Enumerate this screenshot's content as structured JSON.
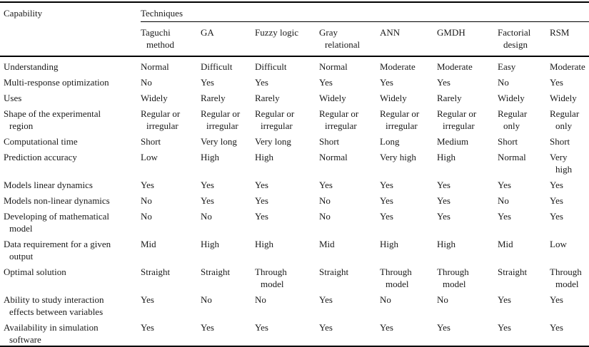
{
  "table": {
    "capability_header": "Capability",
    "techniques_header": "Techniques",
    "technique_columns": [
      "Taguchi\nmethod",
      "GA",
      "Fuzzy logic",
      "Gray\nrelational",
      "ANN",
      "GMDH",
      "Factorial\ndesign",
      "RSM"
    ],
    "rows": [
      {
        "capability": "Understanding",
        "values": [
          "Normal",
          "Difficult",
          "Difficult",
          "Normal",
          "Moderate",
          "Moderate",
          "Easy",
          "Moderate"
        ]
      },
      {
        "capability": "Multi-response optimization",
        "values": [
          "No",
          "Yes",
          "Yes",
          "Yes",
          "Yes",
          "Yes",
          "No",
          "Yes"
        ]
      },
      {
        "capability": "Uses",
        "values": [
          "Widely",
          "Rarely",
          "Rarely",
          "Widely",
          "Widely",
          "Rarely",
          "Widely",
          "Widely"
        ]
      },
      {
        "capability": "Shape of the experimental\nregion",
        "values": [
          "Regular or\nirregular",
          "Regular or\nirregular",
          "Regular or\nirregular",
          "Regular or\nirregular",
          "Regular or\nirregular",
          "Regular or\nirregular",
          "Regular\nonly",
          "Regular\nonly"
        ]
      },
      {
        "capability": "Computational time",
        "values": [
          "Short",
          "Very long",
          "Very long",
          "Short",
          "Long",
          "Medium",
          "Short",
          "Short"
        ]
      },
      {
        "capability": "Prediction accuracy",
        "values": [
          "Low",
          "High",
          "High",
          "Normal",
          "Very high",
          "High",
          "Normal",
          "Very\nhigh"
        ]
      },
      {
        "capability": "Models linear dynamics",
        "values": [
          "Yes",
          "Yes",
          "Yes",
          "Yes",
          "Yes",
          "Yes",
          "Yes",
          "Yes"
        ]
      },
      {
        "capability": "Models non-linear dynamics",
        "values": [
          "No",
          "Yes",
          "Yes",
          "No",
          "Yes",
          "Yes",
          "No",
          "Yes"
        ]
      },
      {
        "capability": "Developing of mathematical\nmodel",
        "values": [
          "No",
          "No",
          "Yes",
          "No",
          "Yes",
          "Yes",
          "Yes",
          "Yes"
        ]
      },
      {
        "capability": "Data requirement for a given\noutput",
        "values": [
          "Mid",
          "High",
          "High",
          "Mid",
          "High",
          "High",
          "Mid",
          "Low"
        ]
      },
      {
        "capability": "Optimal solution",
        "values": [
          "Straight",
          "Straight",
          "Through\nmodel",
          "Straight",
          "Through\nmodel",
          "Through\nmodel",
          "Straight",
          "Through\nmodel"
        ]
      },
      {
        "capability": "Ability to study interaction\neffects between variables",
        "values": [
          "Yes",
          "No",
          "No",
          "Yes",
          "No",
          "No",
          "Yes",
          "Yes"
        ]
      },
      {
        "capability": "Availability in simulation\nsoftware",
        "values": [
          "Yes",
          "Yes",
          "Yes",
          "Yes",
          "Yes",
          "Yes",
          "Yes",
          "Yes"
        ]
      }
    ]
  },
  "colors": {
    "text": "#1a1a1a",
    "rule": "#000000",
    "background": "#ffffff"
  }
}
